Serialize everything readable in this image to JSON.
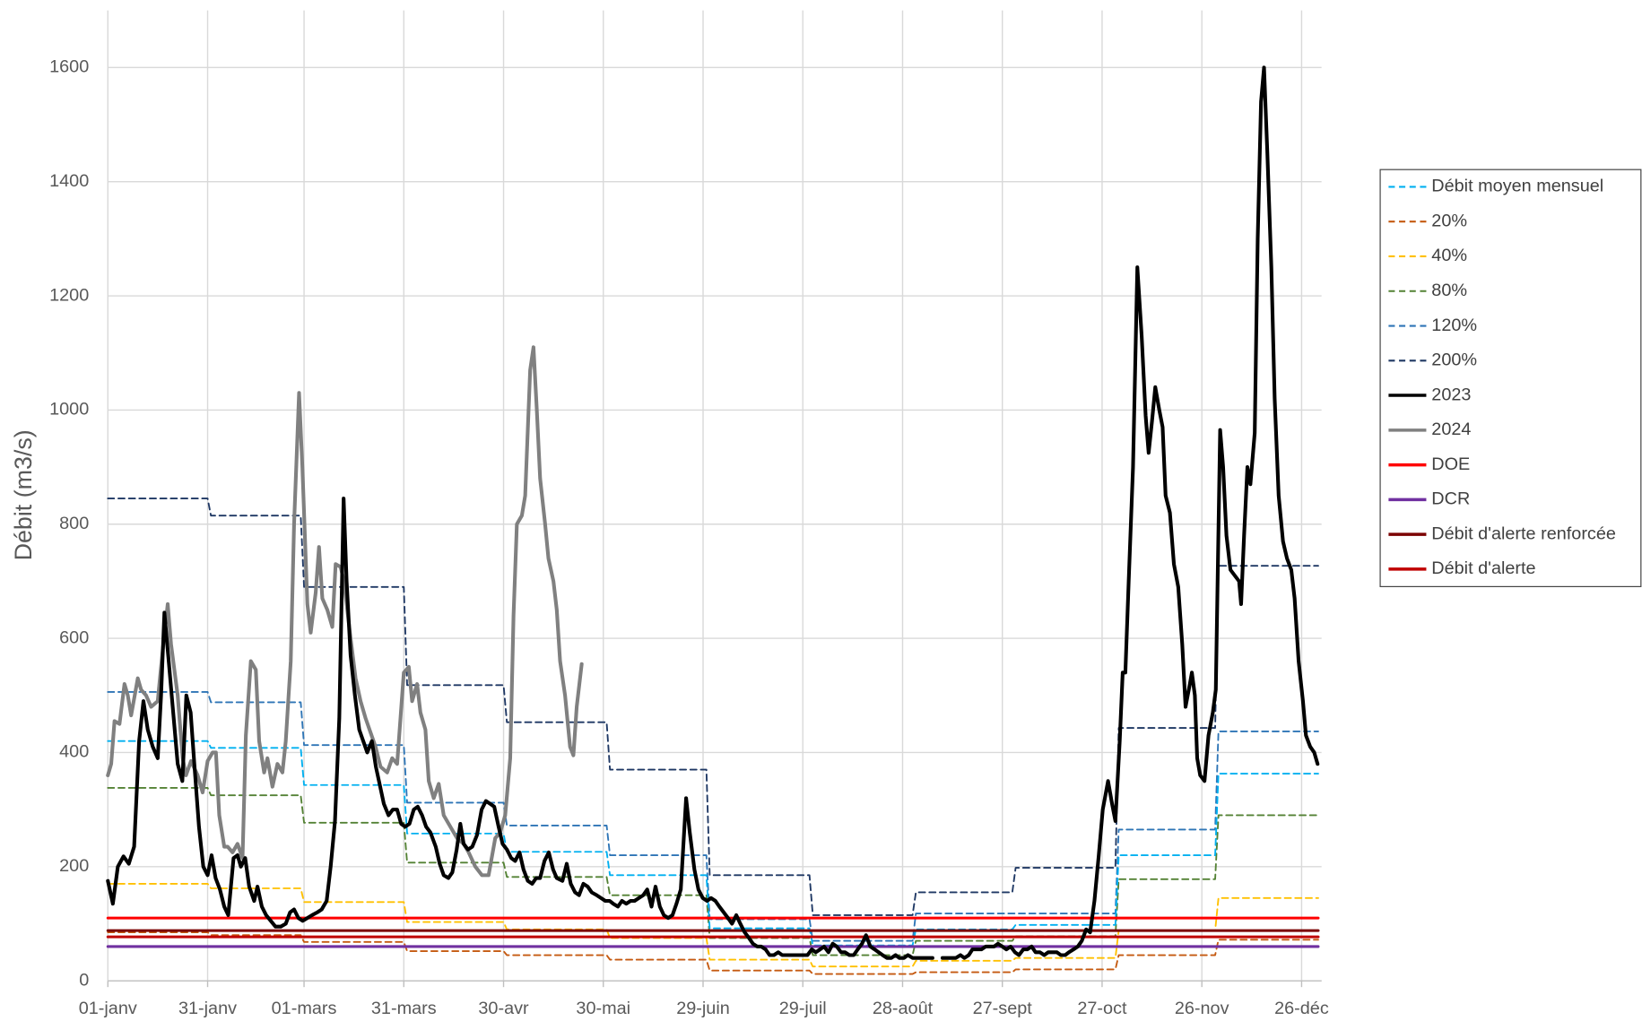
{
  "chart_data": {
    "type": "line",
    "y_label": "Débit (m3/s)",
    "xlim": [
      0,
      365
    ],
    "xticks": [
      {
        "value": 0,
        "label": "01-janv"
      },
      {
        "value": 30,
        "label": "31-janv"
      },
      {
        "value": 59,
        "label": "01-mars"
      },
      {
        "value": 89,
        "label": "31-mars"
      },
      {
        "value": 119,
        "label": "30-avr"
      },
      {
        "value": 149,
        "label": "30-mai"
      },
      {
        "value": 179,
        "label": "29-juin"
      },
      {
        "value": 209,
        "label": "29-juil"
      },
      {
        "value": 239,
        "label": "28-août"
      },
      {
        "value": 269,
        "label": "27-sept"
      },
      {
        "value": 299,
        "label": "27-oct"
      },
      {
        "value": 329,
        "label": "26-nov"
      },
      {
        "value": 359,
        "label": "26-déc"
      }
    ],
    "ylim": [
      0,
      1700
    ],
    "yticks": [
      0,
      200,
      400,
      600,
      800,
      1000,
      1200,
      1400,
      1600
    ],
    "grid": true,
    "legend": "right",
    "series": [
      {
        "name": "Débit moyen mensuel",
        "color": "#00b0f0",
        "dash": true,
        "width": 1.6,
        "x": [
          0,
          30,
          31,
          58,
          59,
          89,
          90,
          119,
          120,
          150,
          151,
          180,
          181,
          211,
          212,
          242,
          243,
          272,
          273,
          303,
          304,
          333,
          334,
          364
        ],
        "values": [
          420,
          420,
          408,
          408,
          343,
          343,
          258,
          258,
          226,
          226,
          185,
          185,
          92,
          92,
          62,
          62,
          90,
          90,
          98,
          98,
          220,
          220,
          363,
          363
        ]
      },
      {
        "name": "20%",
        "color": "#c55a11",
        "dash": true,
        "width": 1.6,
        "x": [
          0,
          30,
          31,
          58,
          59,
          89,
          90,
          119,
          120,
          150,
          151,
          180,
          181,
          211,
          212,
          242,
          243,
          272,
          273,
          303,
          304,
          333,
          334,
          364
        ],
        "values": [
          85,
          85,
          80,
          80,
          68,
          68,
          52,
          52,
          45,
          45,
          37,
          37,
          18,
          18,
          12,
          12,
          15,
          15,
          20,
          20,
          45,
          45,
          72,
          72
        ]
      },
      {
        "name": "40%",
        "color": "#ffc000",
        "dash": true,
        "width": 1.6,
        "x": [
          0,
          30,
          31,
          58,
          59,
          89,
          90,
          119,
          120,
          150,
          151,
          180,
          181,
          211,
          212,
          242,
          243,
          272,
          273,
          303,
          304,
          333,
          334,
          364
        ],
        "values": [
          170,
          170,
          162,
          162,
          138,
          138,
          103,
          103,
          90,
          90,
          75,
          75,
          37,
          37,
          25,
          25,
          35,
          35,
          40,
          40,
          88,
          88,
          145,
          145
        ]
      },
      {
        "name": "80%",
        "color": "#548235",
        "dash": true,
        "width": 1.6,
        "x": [
          0,
          30,
          31,
          58,
          59,
          89,
          90,
          119,
          120,
          150,
          151,
          180,
          181,
          211,
          212,
          242,
          243,
          272,
          273,
          303,
          304,
          333,
          334,
          364
        ],
        "values": [
          338,
          338,
          325,
          325,
          277,
          277,
          207,
          207,
          182,
          182,
          150,
          150,
          75,
          75,
          45,
          45,
          70,
          70,
          78,
          78,
          178,
          178,
          290,
          290
        ]
      },
      {
        "name": "120%",
        "color": "#2e75b6",
        "dash": true,
        "width": 1.6,
        "x": [
          0,
          30,
          31,
          58,
          59,
          89,
          90,
          119,
          120,
          150,
          151,
          180,
          181,
          211,
          212,
          242,
          243,
          272,
          273,
          303,
          304,
          333,
          334,
          364
        ],
        "values": [
          506,
          506,
          488,
          488,
          413,
          413,
          312,
          312,
          272,
          272,
          220,
          220,
          108,
          108,
          70,
          70,
          118,
          118,
          118,
          118,
          265,
          265,
          437,
          437
        ]
      },
      {
        "name": "200%",
        "color": "#1f3864",
        "dash": true,
        "width": 1.6,
        "x": [
          0,
          30,
          31,
          58,
          59,
          89,
          90,
          119,
          120,
          150,
          151,
          180,
          181,
          211,
          212,
          242,
          243,
          272,
          273,
          303,
          304,
          333,
          334,
          364
        ],
        "values": [
          845,
          845,
          815,
          815,
          690,
          690,
          518,
          518,
          453,
          453,
          370,
          370,
          185,
          185,
          115,
          115,
          155,
          155,
          198,
          198,
          443,
          443,
          727,
          727
        ]
      },
      {
        "name": "2023",
        "color": "#000000",
        "dash": false,
        "width": 3.5,
        "x": [
          0,
          1.5,
          3,
          4.7,
          6.3,
          7.9,
          9.4,
          10.7,
          12,
          13.5,
          15,
          16,
          17,
          18.3,
          19.5,
          21,
          22.4,
          23.6,
          24.9,
          26,
          27.4,
          28.7,
          30,
          31.2,
          32.4,
          33.7,
          35,
          36.2,
          37.8,
          39,
          40,
          41.3,
          42.5,
          44,
          45,
          46.3,
          47.6,
          49,
          50.4,
          52,
          53.5,
          54.8,
          56,
          57.3,
          58.6,
          60,
          61.4,
          63,
          64.3,
          65.8,
          67,
          68.3,
          69.6,
          70.9,
          71.8,
          73,
          74.3,
          75.6,
          76.8,
          78,
          79.4,
          80.6,
          81.9,
          83,
          84.4,
          85.7,
          87,
          88.2,
          89.4,
          90.7,
          92,
          93.2,
          94.5,
          95.7,
          97,
          98.6,
          99.8,
          101,
          102.4,
          103.6,
          104.9,
          106,
          107,
          108.3,
          109.6,
          111,
          112.4,
          113.7,
          115,
          116.2,
          117.5,
          118.7,
          120,
          121.3,
          122.5,
          123.8,
          125,
          126.3,
          127.6,
          128.8,
          130,
          131.3,
          132.6,
          133.9,
          135,
          136.7,
          138,
          139.2,
          140.5,
          141.7,
          143,
          144.3,
          145.5,
          147,
          148.3,
          149.6,
          150.9,
          152,
          153.4,
          154.6,
          155.9,
          157.2,
          158.4,
          159.7,
          161,
          162.2,
          163.5,
          164.7,
          166,
          167.2,
          168.5,
          169.8,
          171,
          172.3,
          173.9,
          175,
          176.4,
          177.6,
          178.9,
          180.2,
          181.4,
          182.7,
          183.9,
          185.2,
          186.5,
          187.7,
          189,
          190.2,
          191.5,
          192.8,
          194,
          195.3,
          196.5,
          197.8,
          199,
          200.3,
          201.6,
          202.8,
          204,
          205.4,
          206.6,
          207.9,
          209,
          210.4,
          211.7,
          212.9,
          214.2,
          215.4,
          216.7,
          218,
          219.2,
          220.5,
          221.7,
          223,
          224.3,
          225.5,
          226.8,
          228,
          229.3,
          230.6,
          231.8,
          233,
          234.3,
          235.6,
          236.9,
          238,
          239.4,
          240.6,
          242,
          243,
          244.4,
          245.7,
          246.9,
          248,
          249.5,
          251,
          252.6,
          253.9,
          255,
          256.4,
          257.6,
          258.9,
          260,
          261.4,
          262.7,
          264,
          265.2,
          266.5,
          267.7,
          269,
          270.2,
          271.5,
          272.8,
          274,
          275.3,
          276.5,
          277.8,
          279,
          280.3,
          281.6,
          282.8,
          284,
          285.4,
          286.6,
          287.9,
          289,
          290.4,
          291.7,
          292.9,
          294.2,
          295.4,
          296.7,
          298,
          299.2,
          300.8,
          302,
          303,
          304.3,
          305.2,
          306,
          307,
          308.3,
          309.6,
          310.9,
          312.1,
          313,
          314,
          315,
          316.2,
          317.2,
          318.1,
          319.4,
          320.6,
          321.9,
          323.1,
          324.1,
          325.4,
          326,
          326.9,
          327.6,
          328.5,
          329.8,
          331,
          332.3,
          333.2,
          334.5,
          335.4,
          336.4,
          337.6,
          338.9,
          340.2,
          340.8,
          341.7,
          342.7,
          343.6,
          344.9,
          345.8,
          346.8,
          347.7,
          348.7,
          349.9,
          350.9,
          352.1,
          353.4,
          354.6,
          355.9,
          356.9,
          358.1,
          359.4,
          360.3,
          361.6,
          362.8,
          363.8
        ],
        "values": [
          175,
          135,
          200,
          218,
          205,
          235,
          420,
          490,
          440,
          410,
          390,
          500,
          645,
          560,
          480,
          380,
          350,
          500,
          470,
          380,
          270,
          200,
          185,
          220,
          180,
          160,
          130,
          115,
          215,
          220,
          200,
          215,
          165,
          140,
          165,
          130,
          115,
          105,
          95,
          95,
          100,
          120,
          125,
          110,
          105,
          110,
          115,
          120,
          125,
          140,
          200,
          280,
          460,
          845,
          700,
          570,
          500,
          440,
          420,
          400,
          420,
          375,
          340,
          310,
          290,
          300,
          300,
          275,
          270,
          275,
          300,
          305,
          290,
          270,
          260,
          235,
          205,
          185,
          180,
          190,
          230,
          275,
          240,
          230,
          235,
          255,
          300,
          315,
          310,
          305,
          270,
          240,
          230,
          215,
          210,
          225,
          195,
          175,
          170,
          180,
          180,
          210,
          225,
          195,
          180,
          175,
          205,
          170,
          155,
          150,
          170,
          165,
          155,
          150,
          145,
          140,
          140,
          135,
          130,
          140,
          135,
          140,
          140,
          145,
          150,
          160,
          130,
          165,
          130,
          115,
          110,
          115,
          135,
          160,
          320,
          260,
          195,
          160,
          145,
          140,
          145,
          140,
          130,
          120,
          110,
          100,
          115,
          100,
          85,
          75,
          65,
          60,
          60,
          55,
          45,
          45,
          50,
          45,
          45,
          45,
          45,
          45,
          45,
          45,
          55,
          50,
          55,
          60,
          50,
          65,
          60,
          50,
          50,
          45,
          45,
          55,
          65,
          80,
          60,
          55,
          50,
          45,
          40,
          40,
          45,
          40,
          40,
          45,
          40,
          40,
          40,
          40,
          40,
          40,
          null,
          40,
          40,
          40,
          40,
          45,
          40,
          45,
          55,
          55,
          55,
          60,
          60,
          60,
          65,
          60,
          55,
          60,
          50,
          45,
          55,
          55,
          60,
          50,
          50,
          45,
          50,
          50,
          50,
          45,
          45,
          50,
          55,
          60,
          70,
          90,
          85,
          140,
          220,
          300,
          350,
          310,
          280,
          420,
          540,
          540,
          700,
          900,
          1250,
          1130,
          990,
          925,
          980,
          1040,
          1000,
          970,
          850,
          820,
          730,
          690,
          590,
          480,
          520,
          540,
          500,
          390,
          360,
          350,
          430,
          470,
          510,
          965,
          900,
          780,
          720,
          710,
          700,
          660,
          780,
          900,
          870,
          960,
          1300,
          1540,
          1600,
          1450,
          1250,
          1020,
          850,
          770,
          740,
          720,
          670,
          560,
          490,
          430,
          410,
          400,
          380
        ]
      },
      {
        "name": "2024",
        "color": "#808080",
        "dash": false,
        "width": 3.5,
        "x": [
          0,
          1,
          2,
          3.5,
          5,
          6,
          7,
          9,
          10,
          11.5,
          13,
          15,
          16.5,
          18,
          19,
          21,
          22.5,
          23.5,
          25,
          27,
          28.5,
          30,
          31.5,
          32.5,
          33.5,
          35,
          36,
          37.5,
          39,
          40.5,
          41.5,
          43,
          44.5,
          45.5,
          47,
          48,
          49.5,
          51,
          52.5,
          53.5,
          55,
          56,
          57.5,
          58.5,
          60,
          61,
          62.5,
          63.5,
          64.5,
          66,
          67.5,
          68.5,
          70,
          71,
          73,
          74.5,
          76,
          77.5,
          79,
          80.5,
          82,
          84,
          85.5,
          87,
          89,
          90.5,
          91.5,
          93,
          94,
          95.5,
          96.5,
          98,
          99.5,
          101,
          103,
          105,
          107,
          108.5,
          110.5,
          112.5,
          114.5,
          116.5,
          118,
          119.5,
          121,
          122,
          123,
          124.5,
          125.5,
          127,
          128,
          129,
          130,
          131.5,
          132.5,
          134,
          135,
          136,
          137.5,
          139,
          140,
          141,
          142.5
        ],
        "values": [
          360,
          380,
          455,
          450,
          520,
          500,
          465,
          530,
          510,
          500,
          480,
          490,
          580,
          660,
          590,
          500,
          390,
          360,
          385,
          360,
          330,
          385,
          400,
          400,
          290,
          235,
          235,
          225,
          240,
          215,
          430,
          560,
          545,
          420,
          365,
          390,
          340,
          380,
          365,
          420,
          560,
          800,
          1030,
          900,
          660,
          610,
          680,
          760,
          670,
          650,
          620,
          730,
          725,
          700,
          600,
          530,
          490,
          460,
          435,
          410,
          375,
          365,
          390,
          380,
          540,
          550,
          490,
          520,
          470,
          440,
          350,
          320,
          345,
          290,
          270,
          250,
          240,
          225,
          200,
          185,
          185,
          250,
          260,
          290,
          390,
          640,
          800,
          815,
          850,
          1070,
          1110,
          1000,
          880,
          800,
          740,
          700,
          650,
          560,
          500,
          410,
          395,
          480,
          555
        ]
      },
      {
        "name": "DOE",
        "color": "#ff0000",
        "dash": false,
        "width": 2.6,
        "x": [
          0,
          364
        ],
        "values": [
          110,
          110
        ]
      },
      {
        "name": "DCR",
        "color": "#7030a0",
        "dash": false,
        "width": 2.6,
        "x": [
          0,
          364
        ],
        "values": [
          60,
          60
        ]
      },
      {
        "name": "Débit d'alerte renforcée",
        "color": "#7b0000",
        "dash": false,
        "width": 2.6,
        "x": [
          0,
          364
        ],
        "values": [
          88,
          88
        ]
      },
      {
        "name": "Débit d'alerte",
        "color": "#c00000",
        "dash": false,
        "width": 2.6,
        "x": [
          0,
          364
        ],
        "values": [
          77,
          77
        ]
      }
    ]
  }
}
